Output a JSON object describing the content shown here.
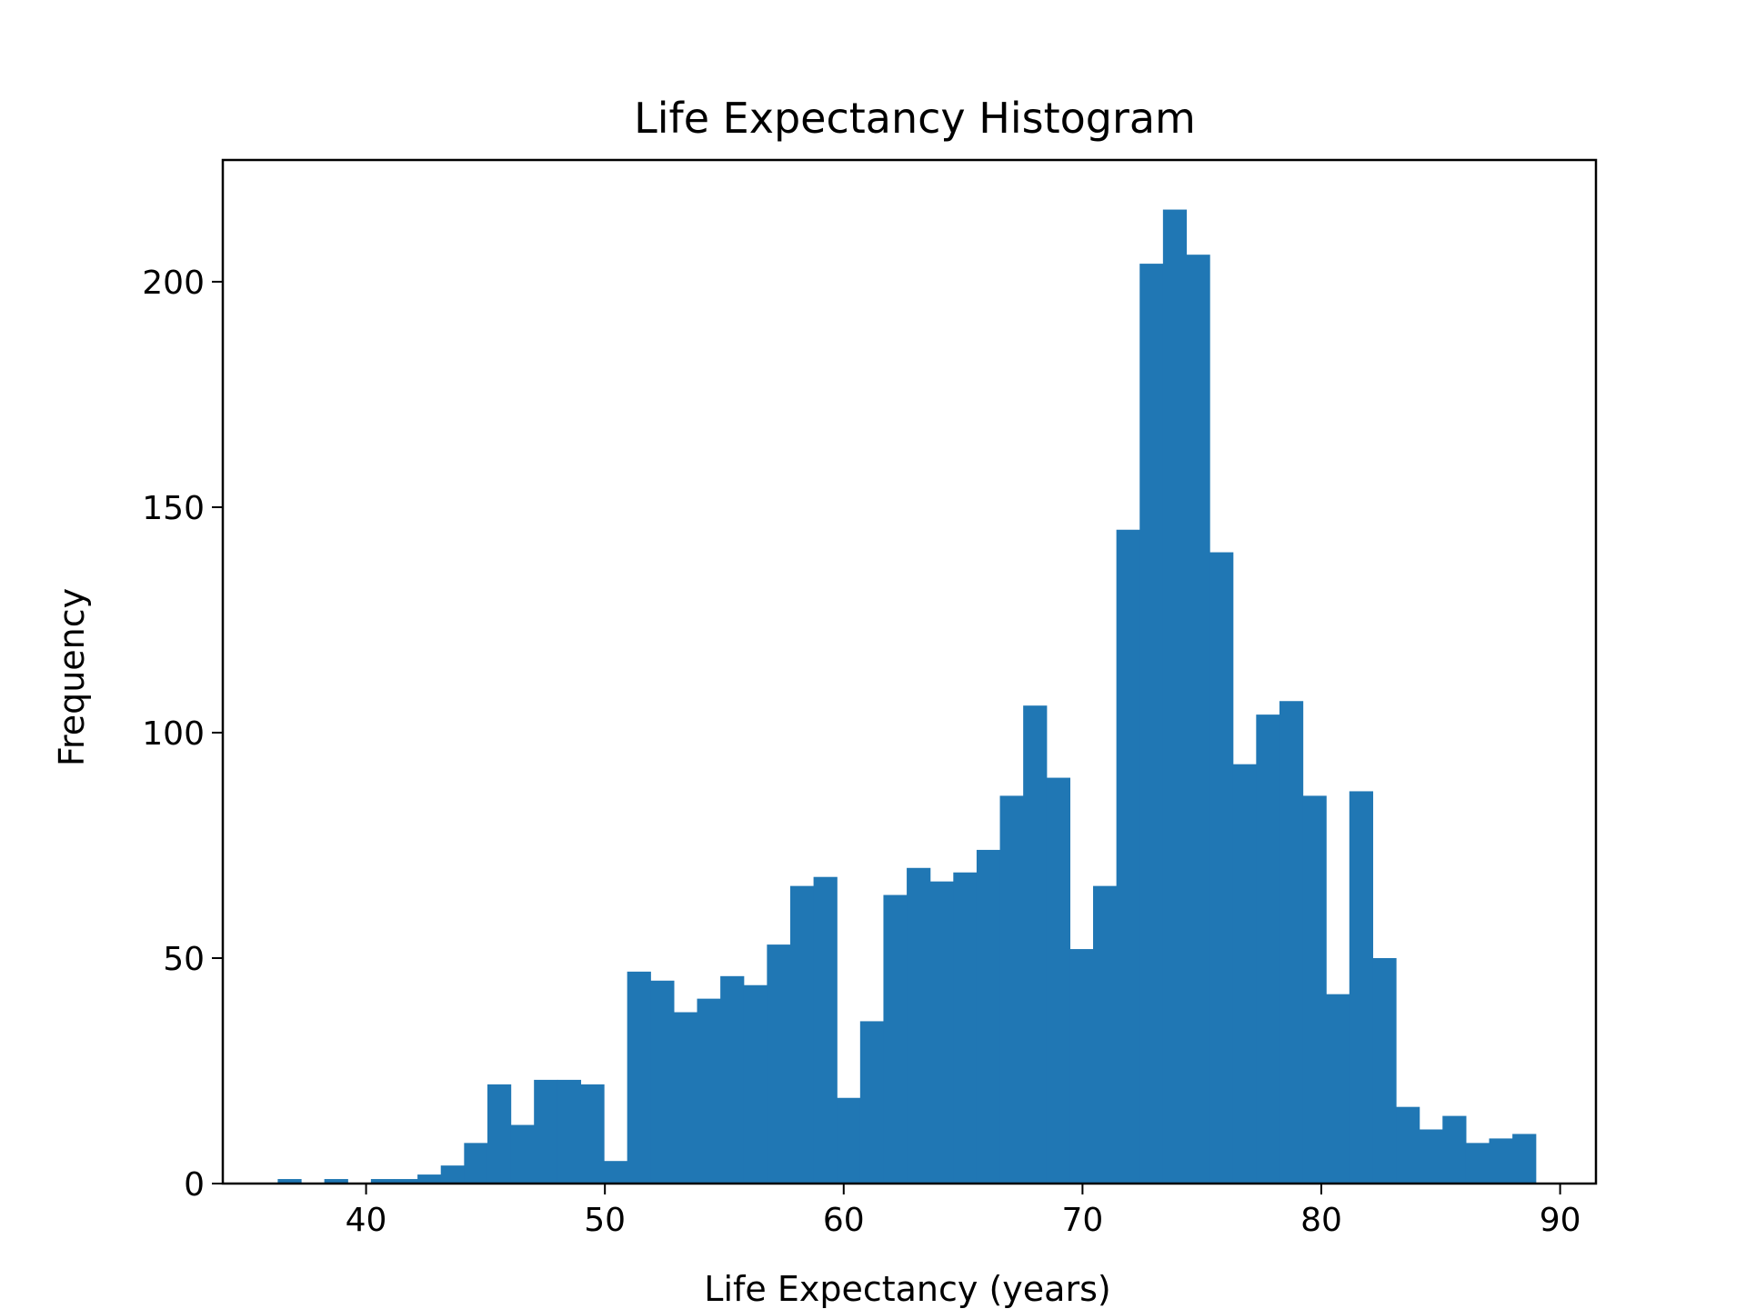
{
  "chart_data": {
    "type": "bar",
    "subtype": "histogram",
    "title": "Life Expectancy Histogram",
    "xlabel": "Life Expectancy (years)",
    "ylabel": "Frequency",
    "xlim": [
      34,
      91.5
    ],
    "ylim": [
      0,
      227
    ],
    "xticks": [
      40,
      50,
      60,
      70,
      80,
      90
    ],
    "yticks": [
      0,
      50,
      100,
      150,
      200
    ],
    "grid": false,
    "legend": "none",
    "bar_color": "#2077b4",
    "bin_start": 36.3,
    "bin_width": 0.9755,
    "bin_values": [
      1,
      0,
      1,
      0,
      1,
      1,
      2,
      4,
      9,
      22,
      13,
      23,
      23,
      22,
      5,
      47,
      45,
      38,
      41,
      46,
      44,
      53,
      66,
      68,
      19,
      36,
      64,
      70,
      67,
      69,
      74,
      86,
      106,
      90,
      52,
      66,
      145,
      204,
      216,
      206,
      140,
      93,
      104,
      107,
      86,
      42,
      87,
      50,
      17,
      12,
      15,
      9,
      10,
      11
    ]
  }
}
